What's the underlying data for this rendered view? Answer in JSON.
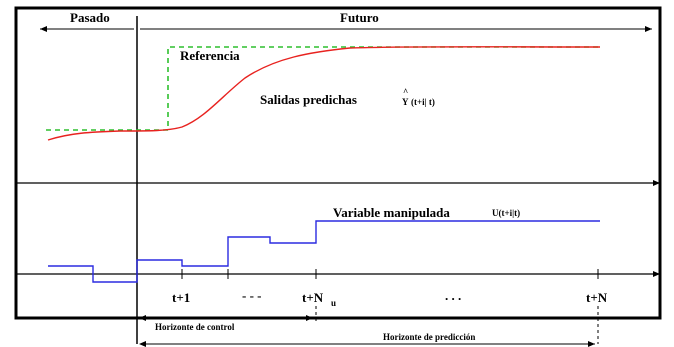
{
  "labels": {
    "past": "Pasado",
    "future": "Futuro",
    "reference": "Referencia",
    "predicted_outputs": "Salidas predichas",
    "predicted_symbol": "Y",
    "predicted_args": "(t+i| t)",
    "manipulated_variable": "Variable manipulada",
    "manipulated_symbol": "U(t+i|t)",
    "tick_t1": "t+1",
    "tick_dots1": "- - -",
    "tick_tnu": "t+N",
    "tick_tnu_sub": "u",
    "tick_dots2": ". . .",
    "tick_tn": "t+N",
    "control_horizon": "Horizonte de control",
    "prediction_horizon": "Horizonte de predicción"
  },
  "colors": {
    "reference": "#2fbf2f",
    "prediction": "#e8221f",
    "control": "#2b2be0",
    "axis": "#000000",
    "frame": "#000000"
  }
}
